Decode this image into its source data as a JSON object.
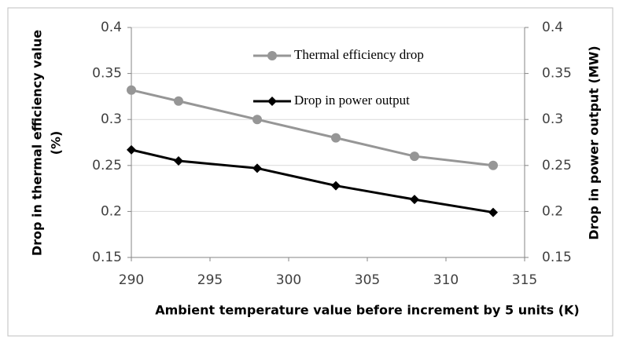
{
  "chart_data": {
    "type": "line",
    "x_label": "Ambient temperature value before increment by 5 units (K)",
    "y_label": [
      "Drop in thermal efficiency value",
      "(%)"
    ],
    "y2_label": "Drop in power output (MW)",
    "x": [
      290,
      293,
      298,
      303,
      308,
      313
    ],
    "series": [
      {
        "name": "Thermal efficiency drop",
        "color": "#969696",
        "marker": "circle",
        "values": [
          0.332,
          0.32,
          0.3,
          0.28,
          0.26,
          0.25
        ]
      },
      {
        "name": "Drop in power output",
        "color": "#000000",
        "marker": "diamond",
        "axis": "y2",
        "values": [
          0.267,
          0.255,
          0.247,
          0.228,
          0.213,
          0.199
        ]
      }
    ],
    "xlim": [
      290,
      315
    ],
    "xticks": [
      290,
      295,
      300,
      305,
      310,
      315
    ],
    "ylim": [
      0.15,
      0.4
    ],
    "yticks": [
      0.15,
      0.2,
      0.25,
      0.3,
      0.35,
      0.4
    ],
    "y2lim": [
      0.15,
      0.4
    ],
    "y2ticks": [
      0.15,
      0.2,
      0.25,
      0.3,
      0.35,
      0.4
    ],
    "grid": true
  }
}
